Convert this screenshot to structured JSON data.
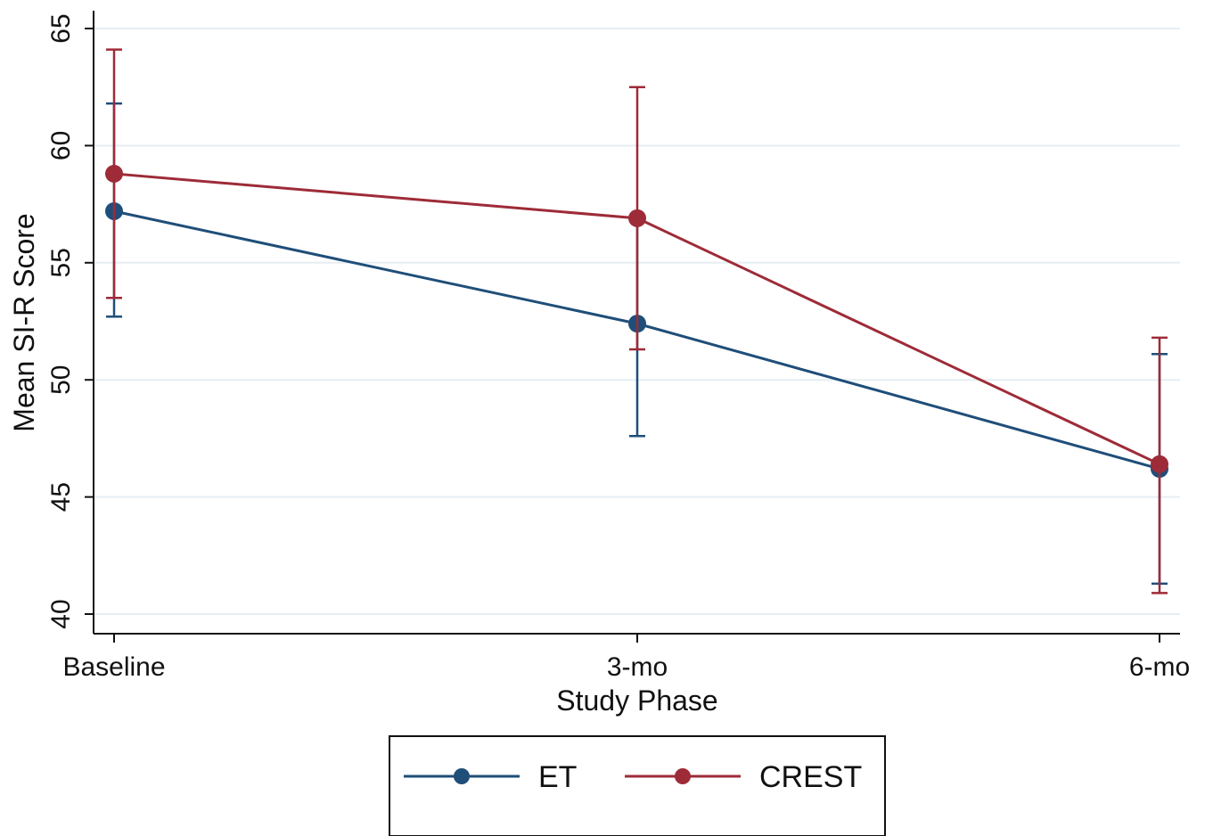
{
  "chart_data": {
    "type": "line",
    "title": "",
    "xlabel": "Study Phase",
    "ylabel": "Mean SI-R Score",
    "categories": [
      "Baseline",
      "3-mo",
      "6-mo"
    ],
    "ylim": [
      40,
      65
    ],
    "yticks": [
      40,
      45,
      50,
      55,
      60,
      65
    ],
    "grid": true,
    "legend_position": "bottom",
    "series": [
      {
        "name": "ET",
        "color": "#1f4e79",
        "values": [
          57.2,
          52.4,
          46.2
        ],
        "ci_low": [
          52.7,
          47.6,
          41.3
        ],
        "ci_high": [
          61.8,
          57.0,
          51.1
        ]
      },
      {
        "name": "CREST",
        "color": "#9e2b38",
        "values": [
          58.8,
          56.9,
          46.4
        ],
        "ci_low": [
          53.5,
          51.3,
          40.9
        ],
        "ci_high": [
          64.1,
          62.5,
          51.8
        ]
      }
    ]
  }
}
